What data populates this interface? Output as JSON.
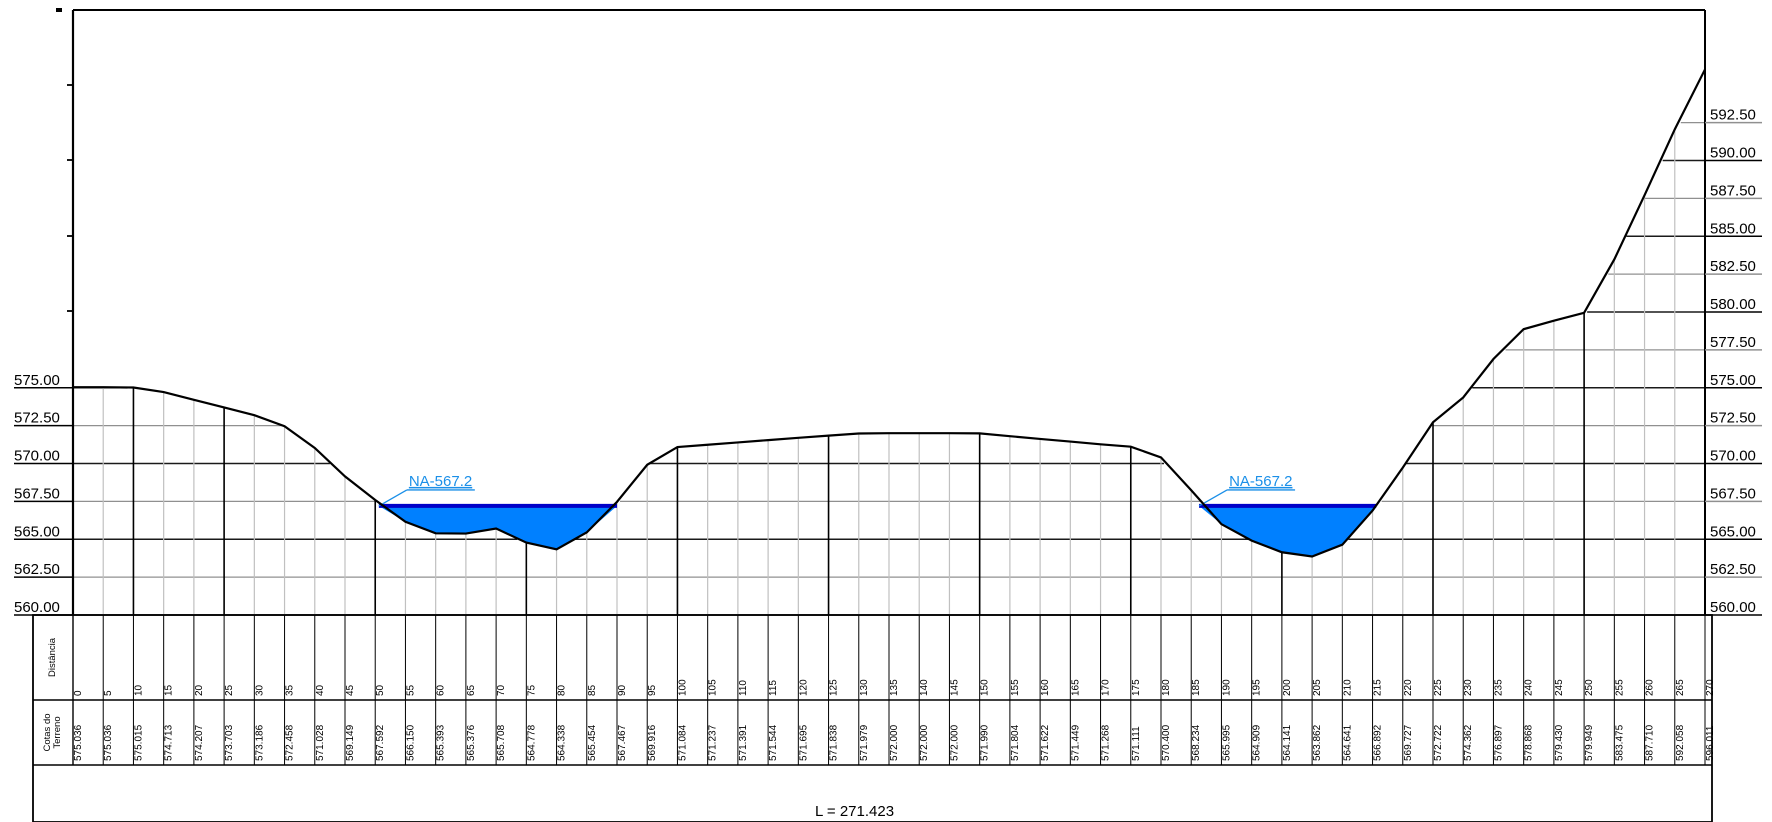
{
  "chart_data": {
    "type": "area",
    "title": "",
    "x_unit": "m",
    "ylim": [
      560,
      595
    ],
    "left_ticks": [
      "575.00",
      "572.50",
      "570.00",
      "567.50",
      "565.00",
      "562.50",
      "560.00"
    ],
    "right_ticks": [
      "592.50",
      "590.00",
      "587.50",
      "585.00",
      "582.50",
      "580.00",
      "577.50",
      "575.00",
      "572.50",
      "570.00",
      "567.50",
      "565.00",
      "562.50",
      "560.00"
    ],
    "distances": [
      "0",
      "5",
      "10",
      "15",
      "20",
      "25",
      "30",
      "35",
      "40",
      "45",
      "50",
      "55",
      "60",
      "65",
      "70",
      "75",
      "80",
      "85",
      "90",
      "95",
      "100",
      "105",
      "110",
      "115",
      "120",
      "125",
      "130",
      "135",
      "140",
      "145",
      "150",
      "155",
      "160",
      "165",
      "170",
      "175",
      "180",
      "185",
      "190",
      "195",
      "200",
      "205",
      "210",
      "215",
      "220",
      "225",
      "230",
      "235",
      "240",
      "245",
      "250",
      "255",
      "260",
      "265",
      "270"
    ],
    "elevations": [
      "575.036",
      "575.036",
      "575.015",
      "574.713",
      "574.207",
      "573.703",
      "573.186",
      "572.458",
      "571.028",
      "569.149",
      "567.592",
      "566.150",
      "565.393",
      "565.376",
      "565.708",
      "564.778",
      "564.338",
      "565.454",
      "567.467",
      "569.916",
      "571.084",
      "571.237",
      "571.391",
      "571.544",
      "571.695",
      "571.838",
      "571.979",
      "572.000",
      "572.000",
      "572.000",
      "571.990",
      "571.804",
      "571.622",
      "571.449",
      "571.268",
      "571.111",
      "570.400",
      "568.234",
      "565.995",
      "564.909",
      "564.141",
      "563.862",
      "564.641",
      "566.892",
      "569.727",
      "572.722",
      "574.362",
      "576.897",
      "578.868",
      "579.430",
      "579.949",
      "583.475",
      "587.710",
      "592.058",
      "596.011"
    ],
    "water_bodies": [
      {
        "label": "NA-567.2",
        "level": 567.2,
        "from": 50.6,
        "to": 90
      },
      {
        "label": "NA-567.2",
        "level": 567.2,
        "from": 186.3,
        "to": 215.6
      }
    ],
    "row_labels": {
      "distance": "Distância",
      "elevation_line1": "Cotas do",
      "elevation_line2": "Terreno"
    },
    "length_label": "L = 271.423",
    "colors": {
      "terrain": "#000000",
      "water_fill": "#0080ff",
      "water_line": "#0000c8",
      "annotation": "#1a8fe8",
      "grid": "#909090",
      "minor_grid": "#c0c0c0"
    }
  }
}
